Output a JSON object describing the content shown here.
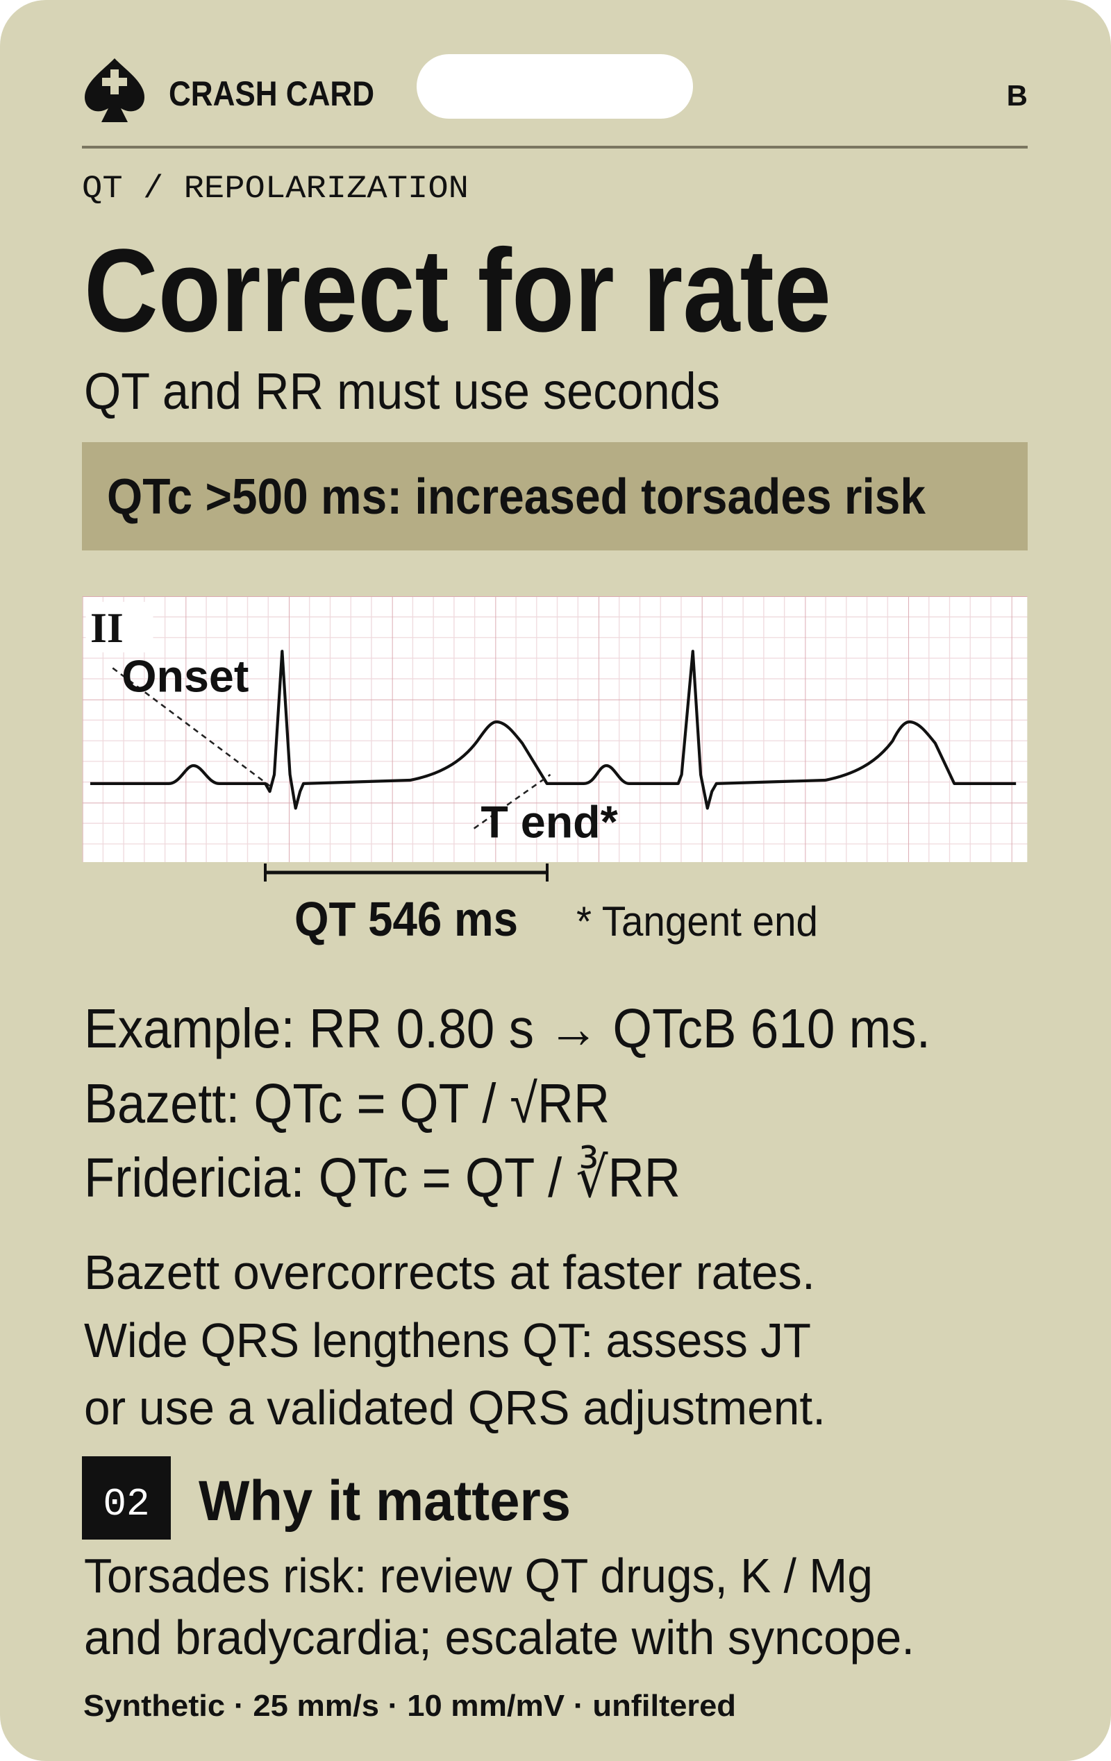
{
  "header": {
    "brand": "CRASH CARD",
    "badge": "B"
  },
  "section": "QT / REPOLARIZATION",
  "title": "Correct for rate",
  "subtitle": "QT and RR must use seconds",
  "alert": "QTc >500 ms: increased torsades risk",
  "ecg": {
    "lead": "II",
    "onset": "Onset",
    "t_end": "T end*",
    "interval": "QT 546 ms",
    "note": "* Tangent end"
  },
  "formulas": [
    "Example: RR 0.80 s → QTcB 610 ms.",
    "Bazett: QTc = QT / √RR",
    "Fridericia: QTc = QT / ∛RR"
  ],
  "notes": [
    "Bazett overcorrects at faster rates.",
    "Wide QRS lengthens QT: assess JT",
    "or use a validated QRS adjustment."
  ],
  "why": {
    "number": "02",
    "heading": "Why it matters",
    "lines": [
      "Torsades risk: review QT drugs, K / Mg",
      "and bradycardia; escalate with syncope."
    ]
  },
  "footer": "Synthetic · 25 mm/s · 10 mm/mV · unfiltered"
}
